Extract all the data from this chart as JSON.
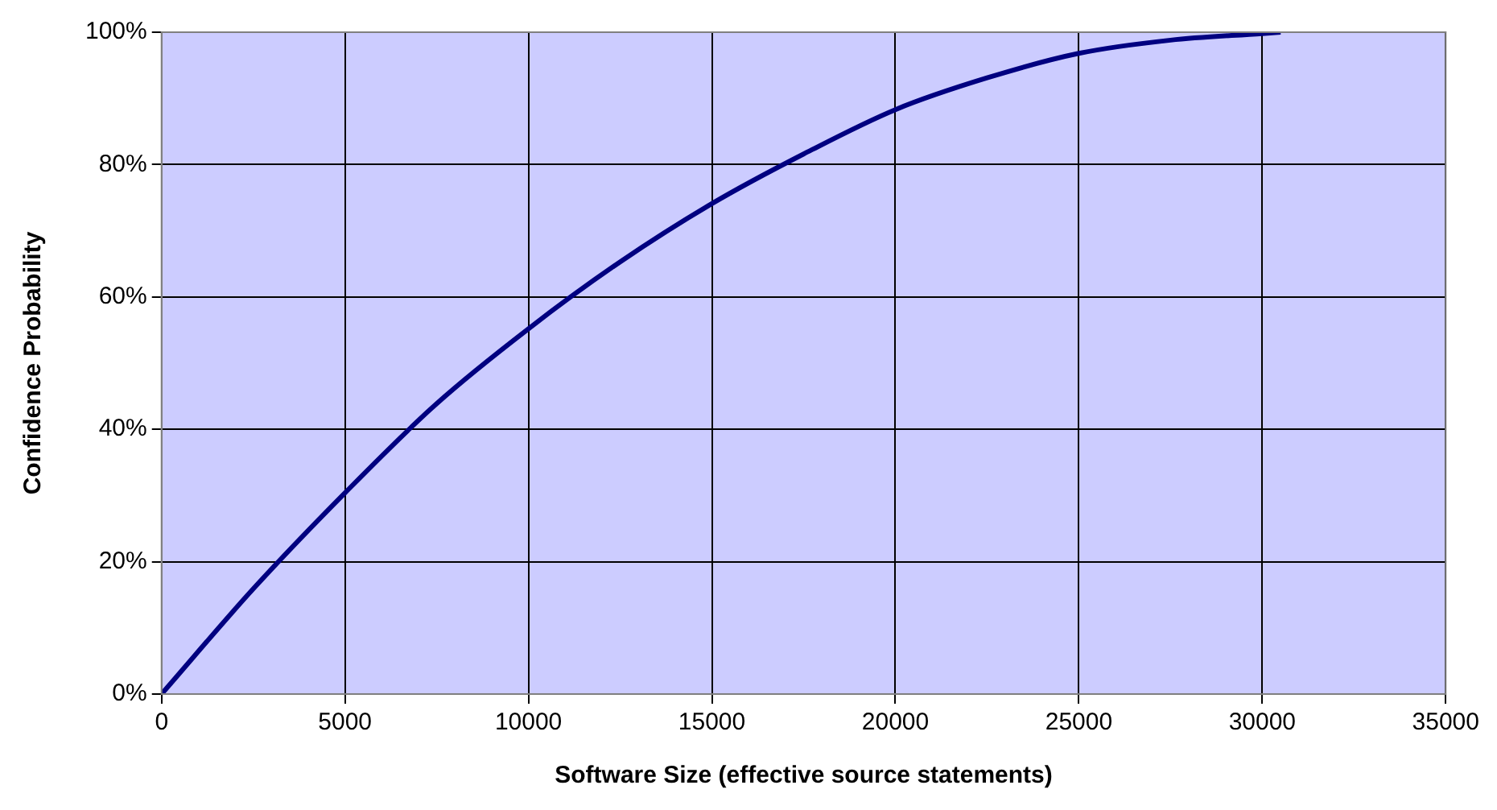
{
  "chart_data": {
    "type": "line",
    "xlabel": "Software Size (effective source statements)",
    "ylabel": "Confidence Probability",
    "series": [
      {
        "color": "#000080",
        "x": [
          0,
          2500,
          5000,
          7500,
          10000,
          12500,
          15000,
          17500,
          20000,
          22500,
          25000,
          27500,
          30000,
          30500
        ],
        "values": [
          0,
          15.9,
          30.4,
          43.9,
          55.2,
          65.3,
          74.1,
          81.6,
          88.3,
          93.1,
          96.8,
          98.8,
          99.8,
          100
        ]
      }
    ],
    "xlim": [
      0,
      35000
    ],
    "xticks": [
      0,
      5000,
      10000,
      15000,
      20000,
      25000,
      30000,
      35000
    ],
    "ylim": [
      0,
      100
    ],
    "yticks": [
      {
        "value": 0,
        "label": "0%"
      },
      {
        "value": 20,
        "label": "20%"
      },
      {
        "value": 40,
        "label": "40%"
      },
      {
        "value": 60,
        "label": "60%"
      },
      {
        "value": 80,
        "label": "80%"
      },
      {
        "value": 100,
        "label": "100%"
      }
    ],
    "grid": true,
    "legend": false,
    "marker": "none",
    "line_style": "solid"
  }
}
